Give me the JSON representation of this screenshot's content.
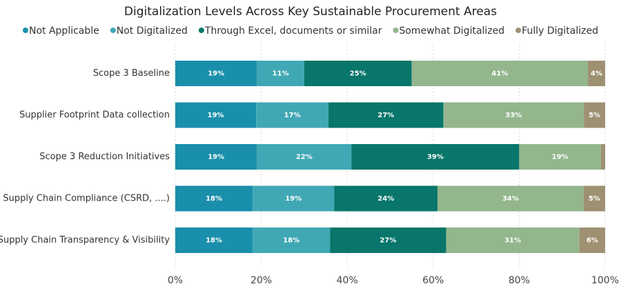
{
  "chart_data": {
    "type": "bar",
    "orientation": "horizontal",
    "stacked": true,
    "normalized": true,
    "title": "Digitalization Levels Across Key Sustainable Procurement Areas",
    "legend_position": "top",
    "categories": [
      "Scope 3 Baseline",
      "Supplier Footprint Data collection",
      "Scope 3 Reduction Initiatives",
      "Supply Chain Compliance (CSRD, ....)",
      "Supply Chain Transparency & Visibility"
    ],
    "series": [
      {
        "name": "Not Applicable",
        "color": "#1a8fab",
        "values": [
          19,
          19,
          19,
          18,
          18
        ],
        "labels": [
          "19%",
          "19%",
          "19%",
          "18%",
          "18%"
        ]
      },
      {
        "name": "Not Digitalized",
        "color": "#40a8b4",
        "values": [
          11,
          17,
          22,
          19,
          18
        ],
        "labels": [
          "11%",
          "17%",
          "22%",
          "19%",
          "18%"
        ]
      },
      {
        "name": "Through Excel, documents or similar",
        "color": "#08766a",
        "values": [
          25,
          27,
          39,
          24,
          27
        ],
        "labels": [
          "25%",
          "27%",
          "39%",
          "24%",
          "27%"
        ]
      },
      {
        "name": "Somewhat Digitalized",
        "color": "#93b68d",
        "values": [
          41,
          33,
          19,
          34,
          31
        ],
        "labels": [
          "41%",
          "33%",
          "19%",
          "34%",
          "31%"
        ]
      },
      {
        "name": "Fully Digitalized",
        "color": "#9e9172",
        "values": [
          4,
          5,
          1,
          5,
          6
        ],
        "labels": [
          "4%",
          "5%",
          "",
          "5%",
          "6%"
        ]
      }
    ],
    "x_ticks": [
      "0%",
      "20%",
      "40%",
      "60%",
      "80%",
      "100%"
    ],
    "xlim": [
      0,
      100
    ],
    "grid": "vertical dashed"
  }
}
